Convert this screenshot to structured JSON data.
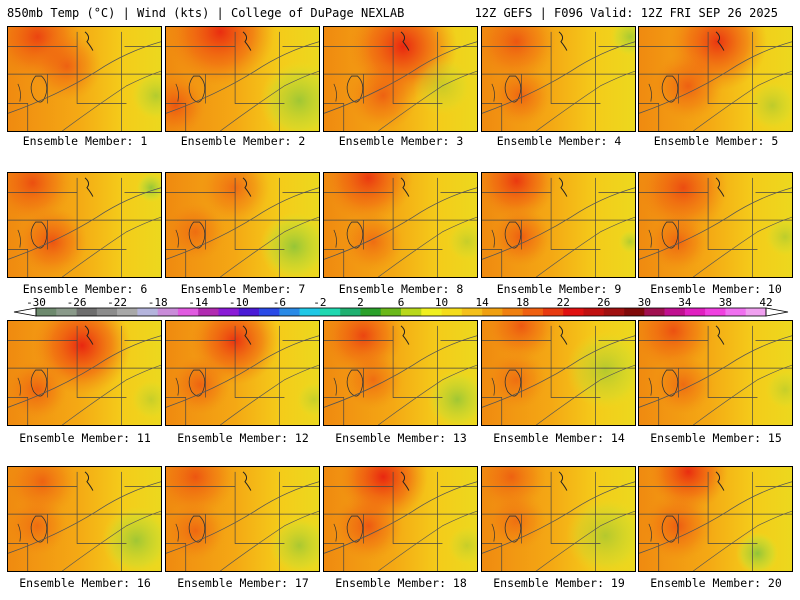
{
  "header": {
    "left_title": "850mb Temp (°C) | Wind (kts) | College of DuPage NEXLAB",
    "right_title": "12Z GEFS | F096 Valid: 12Z FRI SEP 26 2025"
  },
  "colorbar": {
    "unit": "°C",
    "labels": [
      "-30",
      "-26",
      "-22",
      "-18",
      "-14",
      "-10",
      "-6",
      "-2",
      "2",
      "6",
      "10",
      "14",
      "18",
      "22",
      "26",
      "30",
      "34",
      "38",
      "42"
    ],
    "bins": [
      "#6e8a6e",
      "#8a9a8a",
      "#6e6e6e",
      "#8c8c8c",
      "#a8a8a8",
      "#b4b4dc",
      "#c98cd9",
      "#e05ae0",
      "#b02ab0",
      "#8a1ad6",
      "#4a1ad6",
      "#2a4ae6",
      "#2a8ae6",
      "#20c8e6",
      "#20d8b0",
      "#20b070",
      "#2aa02a",
      "#6ab81a",
      "#b8d81a",
      "#f0f020",
      "#f4dc1a",
      "#f4c01a",
      "#f0a010",
      "#f08010",
      "#f06010",
      "#e83a10",
      "#e01010",
      "#c01010",
      "#a01010",
      "#800a0a",
      "#a01050",
      "#c01090",
      "#e020c0",
      "#f040e0",
      "#f070f0",
      "#f0a0f0"
    ]
  },
  "members": [
    {
      "label": "Ensemble Member: 1"
    },
    {
      "label": "Ensemble Member: 2"
    },
    {
      "label": "Ensemble Member: 3"
    },
    {
      "label": "Ensemble Member: 4"
    },
    {
      "label": "Ensemble Member: 5"
    },
    {
      "label": "Ensemble Member: 6"
    },
    {
      "label": "Ensemble Member: 7"
    },
    {
      "label": "Ensemble Member: 8"
    },
    {
      "label": "Ensemble Member: 9"
    },
    {
      "label": "Ensemble Member: 10"
    },
    {
      "label": "Ensemble Member: 11"
    },
    {
      "label": "Ensemble Member: 12"
    },
    {
      "label": "Ensemble Member: 13"
    },
    {
      "label": "Ensemble Member: 14"
    },
    {
      "label": "Ensemble Member: 15"
    },
    {
      "label": "Ensemble Member: 16"
    },
    {
      "label": "Ensemble Member: 17"
    },
    {
      "label": "Ensemble Member: 18"
    },
    {
      "label": "Ensemble Member: 19"
    },
    {
      "label": "Ensemble Member: 20"
    }
  ]
}
